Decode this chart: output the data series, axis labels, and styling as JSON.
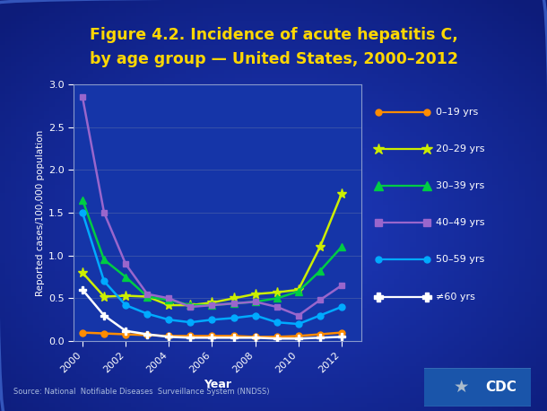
{
  "title_line1": "Figure 4.2. Incidence of acute hepatitis C,",
  "title_line2": "by age group — United States, 2000–2012",
  "xlabel": "Year",
  "ylabel": "Reported cases/100,000 population",
  "source": "Source: National  Notifiable Diseases  Surveillance System (NNDSS)",
  "years": [
    2000,
    2001,
    2002,
    2003,
    2004,
    2005,
    2006,
    2007,
    2008,
    2009,
    2010,
    2011,
    2012
  ],
  "series": {
    "0–19 yrs": [
      0.1,
      0.09,
      0.08,
      0.07,
      0.06,
      0.06,
      0.06,
      0.06,
      0.05,
      0.05,
      0.06,
      0.08,
      0.1
    ],
    "20–29 yrs": [
      0.8,
      0.52,
      0.53,
      0.52,
      0.42,
      0.42,
      0.45,
      0.5,
      0.55,
      0.57,
      0.6,
      1.1,
      1.72
    ],
    "30–39 yrs": [
      1.65,
      0.95,
      0.75,
      0.52,
      0.48,
      0.42,
      0.42,
      0.44,
      0.46,
      0.5,
      0.58,
      0.82,
      1.1
    ],
    "40–49 yrs": [
      2.85,
      1.5,
      0.9,
      0.55,
      0.5,
      0.4,
      0.42,
      0.44,
      0.46,
      0.4,
      0.3,
      0.48,
      0.65
    ],
    "50–59 yrs": [
      1.5,
      0.7,
      0.42,
      0.32,
      0.25,
      0.22,
      0.25,
      0.27,
      0.3,
      0.22,
      0.2,
      0.3,
      0.4
    ],
    "≠60 yrs": [
      0.6,
      0.3,
      0.12,
      0.08,
      0.05,
      0.04,
      0.04,
      0.04,
      0.04,
      0.03,
      0.03,
      0.04,
      0.05
    ]
  },
  "colors": {
    "0–19 yrs": "#FF8C00",
    "20–29 yrs": "#CCEE00",
    "30–39 yrs": "#00CC44",
    "40–49 yrs": "#9966CC",
    "50–59 yrs": "#00AAFF",
    "≠60 yrs": "#FFFFFF"
  },
  "markers": {
    "0–19 yrs": "o",
    "20–29 yrs": "*",
    "30–39 yrs": "^",
    "40–49 yrs": "s",
    "50–59 yrs": "o",
    "≠60 yrs": "P"
  },
  "bg_color_outer": "#0f2080",
  "bg_color_inner": "#1a3ab5",
  "plot_bg_color": "#1535a8",
  "title_color": "#FFD700",
  "axis_color": "#FFFFFF",
  "tick_color": "#FFFFFF",
  "legend_text_color": "#FFFFFF",
  "source_color": "#AABBDD",
  "ylim": [
    0,
    3.0
  ],
  "yticks": [
    0,
    0.5,
    1.0,
    1.5,
    2.0,
    2.5,
    3.0
  ],
  "xticks": [
    2000,
    2002,
    2004,
    2006,
    2008,
    2010,
    2012
  ],
  "figsize": [
    6.1,
    4.58
  ],
  "dpi": 100
}
